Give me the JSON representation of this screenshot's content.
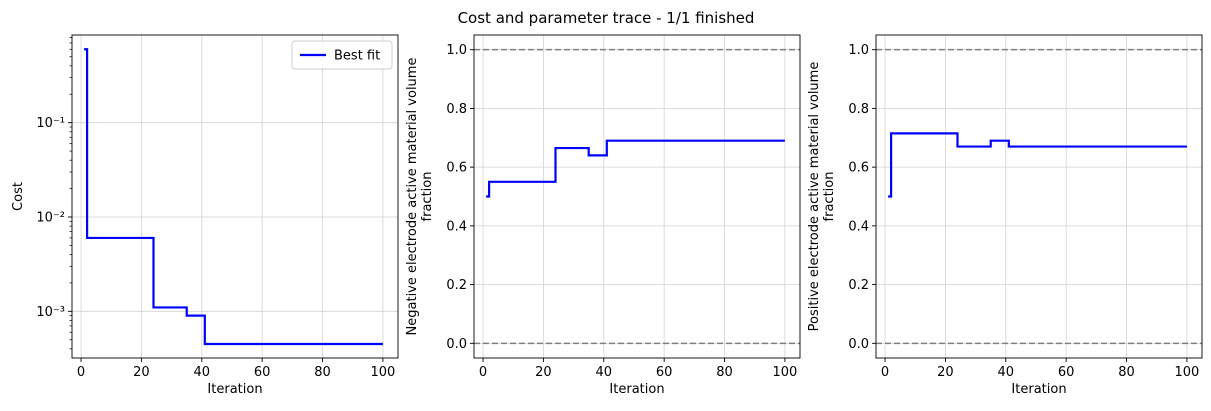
{
  "figure": {
    "suptitle": "Cost and parameter trace - 1/1 finished"
  },
  "colors": {
    "line": "#0000ff",
    "grid": "#d3d3d3",
    "bounds": "#808080",
    "axis": "#000000"
  },
  "chart_data": [
    {
      "type": "line",
      "xlabel": "Iteration",
      "ylabel": "Cost",
      "yscale": "log",
      "xlim": [
        -3,
        105
      ],
      "ylim": [
        0.00032,
        0.85
      ],
      "xticks": [
        0,
        20,
        40,
        60,
        80,
        100
      ],
      "xtick_labels": [
        "0",
        "20",
        "40",
        "60",
        "80",
        "100"
      ],
      "yticks": [
        0.001,
        0.01,
        0.1
      ],
      "ytick_labels": [
        "10⁻³",
        "10⁻²",
        "10⁻¹"
      ],
      "grid": true,
      "legend": {
        "position": "top-right",
        "entries": [
          "Best fit"
        ]
      },
      "series": [
        {
          "name": "Best fit",
          "color": "#0000ff",
          "step": true,
          "x": [
            1,
            2,
            24,
            35,
            41,
            100
          ],
          "y": [
            0.6,
            0.006,
            0.0011,
            0.0009,
            0.00045,
            0.00045
          ]
        }
      ]
    },
    {
      "type": "line",
      "xlabel": "Iteration",
      "ylabel": "Negative electrode active material volume\nfraction",
      "xlim": [
        -3,
        105
      ],
      "ylim": [
        -0.05,
        1.05
      ],
      "xticks": [
        0,
        20,
        40,
        60,
        80,
        100
      ],
      "xtick_labels": [
        "0",
        "20",
        "40",
        "60",
        "80",
        "100"
      ],
      "yticks": [
        0.0,
        0.2,
        0.4,
        0.6,
        0.8,
        1.0
      ],
      "ytick_labels": [
        "0.0",
        "0.2",
        "0.4",
        "0.6",
        "0.8",
        "1.0"
      ],
      "grid": true,
      "bounds": [
        0.0,
        1.0
      ],
      "series": [
        {
          "color": "#0000ff",
          "step": true,
          "x": [
            1,
            2,
            24,
            35,
            41,
            100
          ],
          "y": [
            0.5,
            0.55,
            0.665,
            0.64,
            0.69,
            0.69
          ]
        }
      ]
    },
    {
      "type": "line",
      "xlabel": "Iteration",
      "ylabel": "Positive electrode active material volume\nfraction",
      "xlim": [
        -3,
        105
      ],
      "ylim": [
        -0.05,
        1.05
      ],
      "xticks": [
        0,
        20,
        40,
        60,
        80,
        100
      ],
      "xtick_labels": [
        "0",
        "20",
        "40",
        "60",
        "80",
        "100"
      ],
      "yticks": [
        0.0,
        0.2,
        0.4,
        0.6,
        0.8,
        1.0
      ],
      "ytick_labels": [
        "0.0",
        "0.2",
        "0.4",
        "0.6",
        "0.8",
        "1.0"
      ],
      "grid": true,
      "bounds": [
        0.0,
        1.0
      ],
      "series": [
        {
          "color": "#0000ff",
          "step": true,
          "x": [
            1,
            2,
            24,
            35,
            41,
            100
          ],
          "y": [
            0.5,
            0.715,
            0.67,
            0.69,
            0.67,
            0.67
          ]
        }
      ]
    }
  ]
}
